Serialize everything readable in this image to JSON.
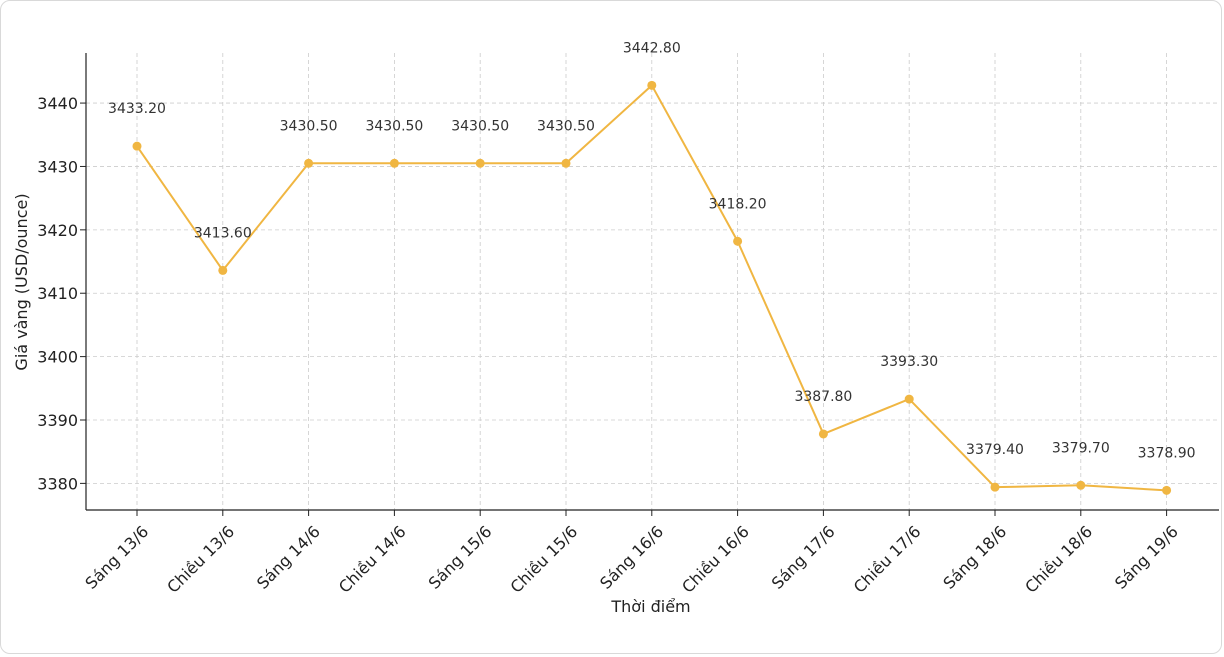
{
  "chart_data": {
    "type": "line",
    "title": "",
    "xlabel": "Thời điểm",
    "ylabel": "Giá vàng (USD/ounce)",
    "categories": [
      "Sáng 13/6",
      "Chiều 13/6",
      "Sáng 14/6",
      "Chiều 14/6",
      "Sáng 15/6",
      "Chiều 15/6",
      "Sáng 16/6",
      "Chiều 16/6",
      "Sáng 17/6",
      "Chiều 17/6",
      "Sáng 18/6",
      "Chiều 18/6",
      "Sáng 19/6"
    ],
    "values": [
      3433.2,
      3413.6,
      3430.5,
      3430.5,
      3430.5,
      3430.5,
      3442.8,
      3418.2,
      3387.8,
      3393.3,
      3379.4,
      3379.7,
      3378.9
    ],
    "value_labels": [
      "3433.20",
      "3413.60",
      "3430.50",
      "3430.50",
      "3430.50",
      "3430.50",
      "3442.80",
      "3418.20",
      "3387.80",
      "3393.30",
      "3379.40",
      "3379.70",
      "3378.90"
    ],
    "yticks": [
      3380,
      3390,
      3400,
      3410,
      3420,
      3430,
      3440
    ],
    "ytick_labels": [
      "3380",
      "3390",
      "3400",
      "3410",
      "3420",
      "3430",
      "3440"
    ],
    "ylim": [
      3375.8,
      3447.9
    ],
    "grid": true,
    "line_color": "#f0b642",
    "grid_color": "#cccccc",
    "axis_color": "#222222"
  }
}
